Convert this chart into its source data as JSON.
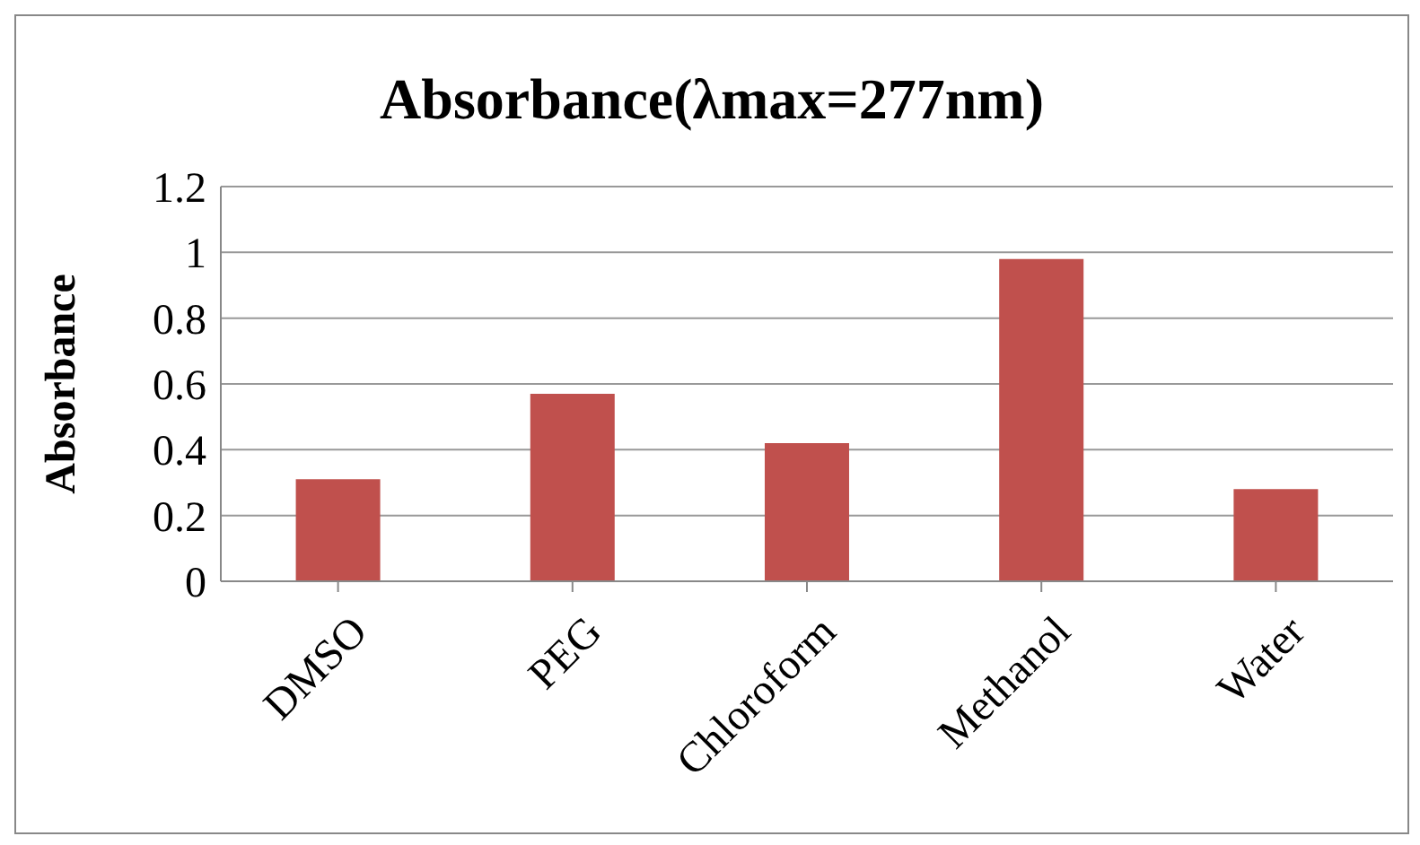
{
  "chart_data": {
    "type": "bar",
    "title": "Absorbance(λmax=277nm)",
    "ylabel": "Absorbance",
    "categories": [
      "DMSO",
      "PEG",
      "Chloroform",
      "Methanol",
      "Water"
    ],
    "values": [
      0.31,
      0.57,
      0.42,
      0.98,
      0.28
    ],
    "color": "#c0504d",
    "ylim": [
      0,
      1.2
    ],
    "yticks": [
      0,
      0.2,
      0.4,
      0.6,
      0.8,
      1,
      1.2
    ],
    "grid": "y",
    "legend": false
  }
}
